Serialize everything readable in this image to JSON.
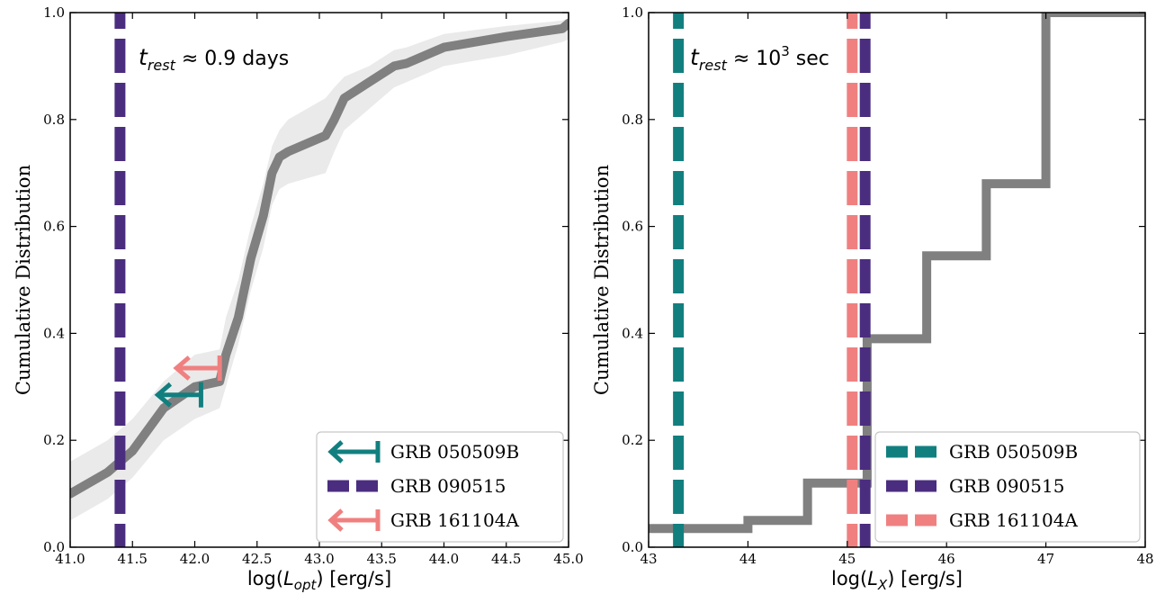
{
  "chart_data": [
    {
      "type": "line",
      "xlabel": "log(L_opt) [erg/s]",
      "ylabel": "Cumulative Distribution",
      "xlim": [
        41.0,
        45.0
      ],
      "ylim": [
        0.0,
        1.0
      ],
      "xticks": [
        "41.0",
        "41.5",
        "42.0",
        "42.5",
        "43.0",
        "43.5",
        "44.0",
        "44.5",
        "45.0"
      ],
      "yticks": [
        "0.0",
        "0.2",
        "0.4",
        "0.6",
        "0.8",
        "1.0"
      ],
      "annotation": {
        "main": "t",
        "sub": "rest",
        "rest": " ≈ 0.9 days"
      },
      "legend_position": "lower-right",
      "series": [
        {
          "kind": "cdf",
          "x": [
            41.0,
            41.3,
            41.5,
            41.75,
            42.0,
            42.2,
            42.25,
            42.35,
            42.45,
            42.55,
            42.62,
            42.68,
            42.75,
            43.05,
            43.12,
            43.2,
            43.4,
            43.6,
            43.7,
            44.0,
            44.5,
            44.95,
            45.0
          ],
          "y": [
            0.1,
            0.14,
            0.18,
            0.26,
            0.3,
            0.31,
            0.36,
            0.43,
            0.54,
            0.62,
            0.7,
            0.73,
            0.74,
            0.77,
            0.8,
            0.84,
            0.87,
            0.9,
            0.905,
            0.935,
            0.955,
            0.97,
            0.98
          ],
          "lower": [
            0.05,
            0.09,
            0.13,
            0.2,
            0.24,
            0.26,
            0.3,
            0.38,
            0.48,
            0.56,
            0.64,
            0.67,
            0.68,
            0.7,
            0.74,
            0.78,
            0.82,
            0.86,
            0.87,
            0.9,
            0.92,
            0.945,
            0.95
          ],
          "upper": [
            0.16,
            0.2,
            0.24,
            0.31,
            0.36,
            0.37,
            0.43,
            0.5,
            0.6,
            0.68,
            0.75,
            0.78,
            0.8,
            0.84,
            0.86,
            0.88,
            0.9,
            0.93,
            0.935,
            0.96,
            0.975,
            0.985,
            0.99
          ]
        }
      ],
      "vlines": [
        {
          "name": "GRB 090515",
          "x": 41.4,
          "color": "#4b2d7f",
          "dashed": true
        }
      ],
      "upper_limits": [
        {
          "name": "GRB 050509B",
          "x": 42.05,
          "y": 0.285,
          "color": "#127f7f"
        },
        {
          "name": "GRB 161104A",
          "x": 42.2,
          "y": 0.335,
          "color": "#f08080"
        }
      ],
      "legend": [
        {
          "label": "GRB 050509B",
          "marker": "limit",
          "color": "#127f7f"
        },
        {
          "label": "GRB 090515",
          "marker": "dash",
          "color": "#4b2d7f"
        },
        {
          "label": "GRB 161104A",
          "marker": "limit",
          "color": "#f08080"
        }
      ]
    },
    {
      "type": "line",
      "xlabel": "log(L_X) [erg/s]",
      "ylabel": "Cumulative Distribution",
      "xlim": [
        43,
        48
      ],
      "ylim": [
        0.0,
        1.0
      ],
      "xticks": [
        "43",
        "44",
        "45",
        "46",
        "47",
        "48"
      ],
      "yticks": [
        "0.0",
        "0.2",
        "0.4",
        "0.6",
        "0.8",
        "1.0"
      ],
      "annotation": {
        "main": "t",
        "sub": "rest",
        "rest": " ≈ 10",
        "sup": "3",
        "after": " sec"
      },
      "legend_position": "lower-right",
      "series": [
        {
          "kind": "step",
          "x": [
            43.0,
            44.0,
            44.6,
            45.2,
            45.8,
            46.4,
            47.0,
            48.0
          ],
          "y": [
            0.035,
            0.05,
            0.12,
            0.39,
            0.545,
            0.68,
            1.0,
            1.0
          ]
        }
      ],
      "vlines": [
        {
          "name": "GRB 050509B",
          "x": 43.3,
          "color": "#127f7f",
          "dashed": true
        },
        {
          "name": "GRB 161104A",
          "x": 45.05,
          "color": "#f08080",
          "dashed": true
        },
        {
          "name": "GRB 090515",
          "x": 45.18,
          "color": "#4b2d7f",
          "dashed": true
        }
      ],
      "legend": [
        {
          "label": "GRB 050509B",
          "marker": "dash",
          "color": "#127f7f"
        },
        {
          "label": "GRB 090515",
          "marker": "dash",
          "color": "#4b2d7f"
        },
        {
          "label": "GRB 161104A",
          "marker": "dash",
          "color": "#f08080"
        }
      ]
    }
  ]
}
